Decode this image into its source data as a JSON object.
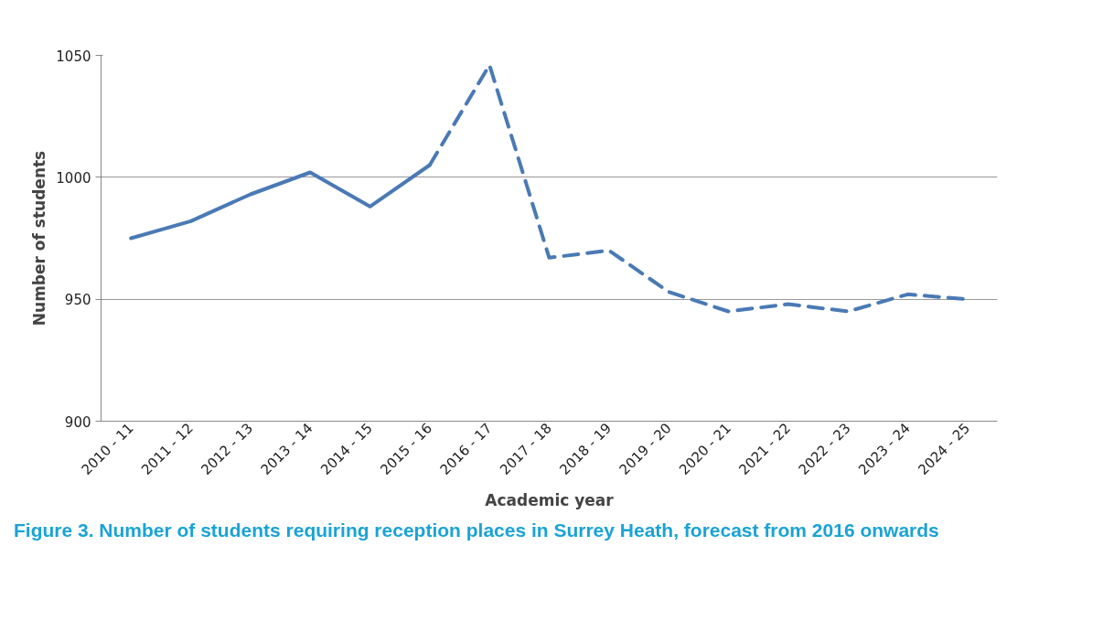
{
  "chart_data": {
    "type": "line",
    "xlabel": "Academic year",
    "ylabel": "Number of students",
    "categories": [
      "2010 - 11",
      "2011 - 12",
      "2012 - 13",
      "2013 - 14",
      "2014 - 15",
      "2015 - 16",
      "2016 - 17",
      "2017 - 18",
      "2018 - 19",
      "2019 - 20",
      "2020 - 21",
      "2021 - 22",
      "2022 - 23",
      "2023 - 24",
      "2024 - 25"
    ],
    "series": [
      {
        "color": "#4a7ab5",
        "line_style": "solid",
        "values": [
          975,
          982,
          993,
          1002,
          988,
          1005,
          null,
          null,
          null,
          null,
          null,
          null,
          null,
          null,
          null
        ]
      },
      {
        "color": "#4a7ab5",
        "line_style": "dashed",
        "values": [
          null,
          null,
          null,
          null,
          null,
          1005,
          1046,
          967,
          970,
          953,
          945,
          948,
          945,
          952,
          950
        ]
      }
    ],
    "ylim": [
      900,
      1050
    ],
    "yticks": [
      900,
      950,
      1000,
      1050
    ],
    "grid": "y",
    "annotations": [
      "Figure 3.  Number of students requiring reception places in Surrey Heath, forecast from 2016 onwards"
    ]
  }
}
